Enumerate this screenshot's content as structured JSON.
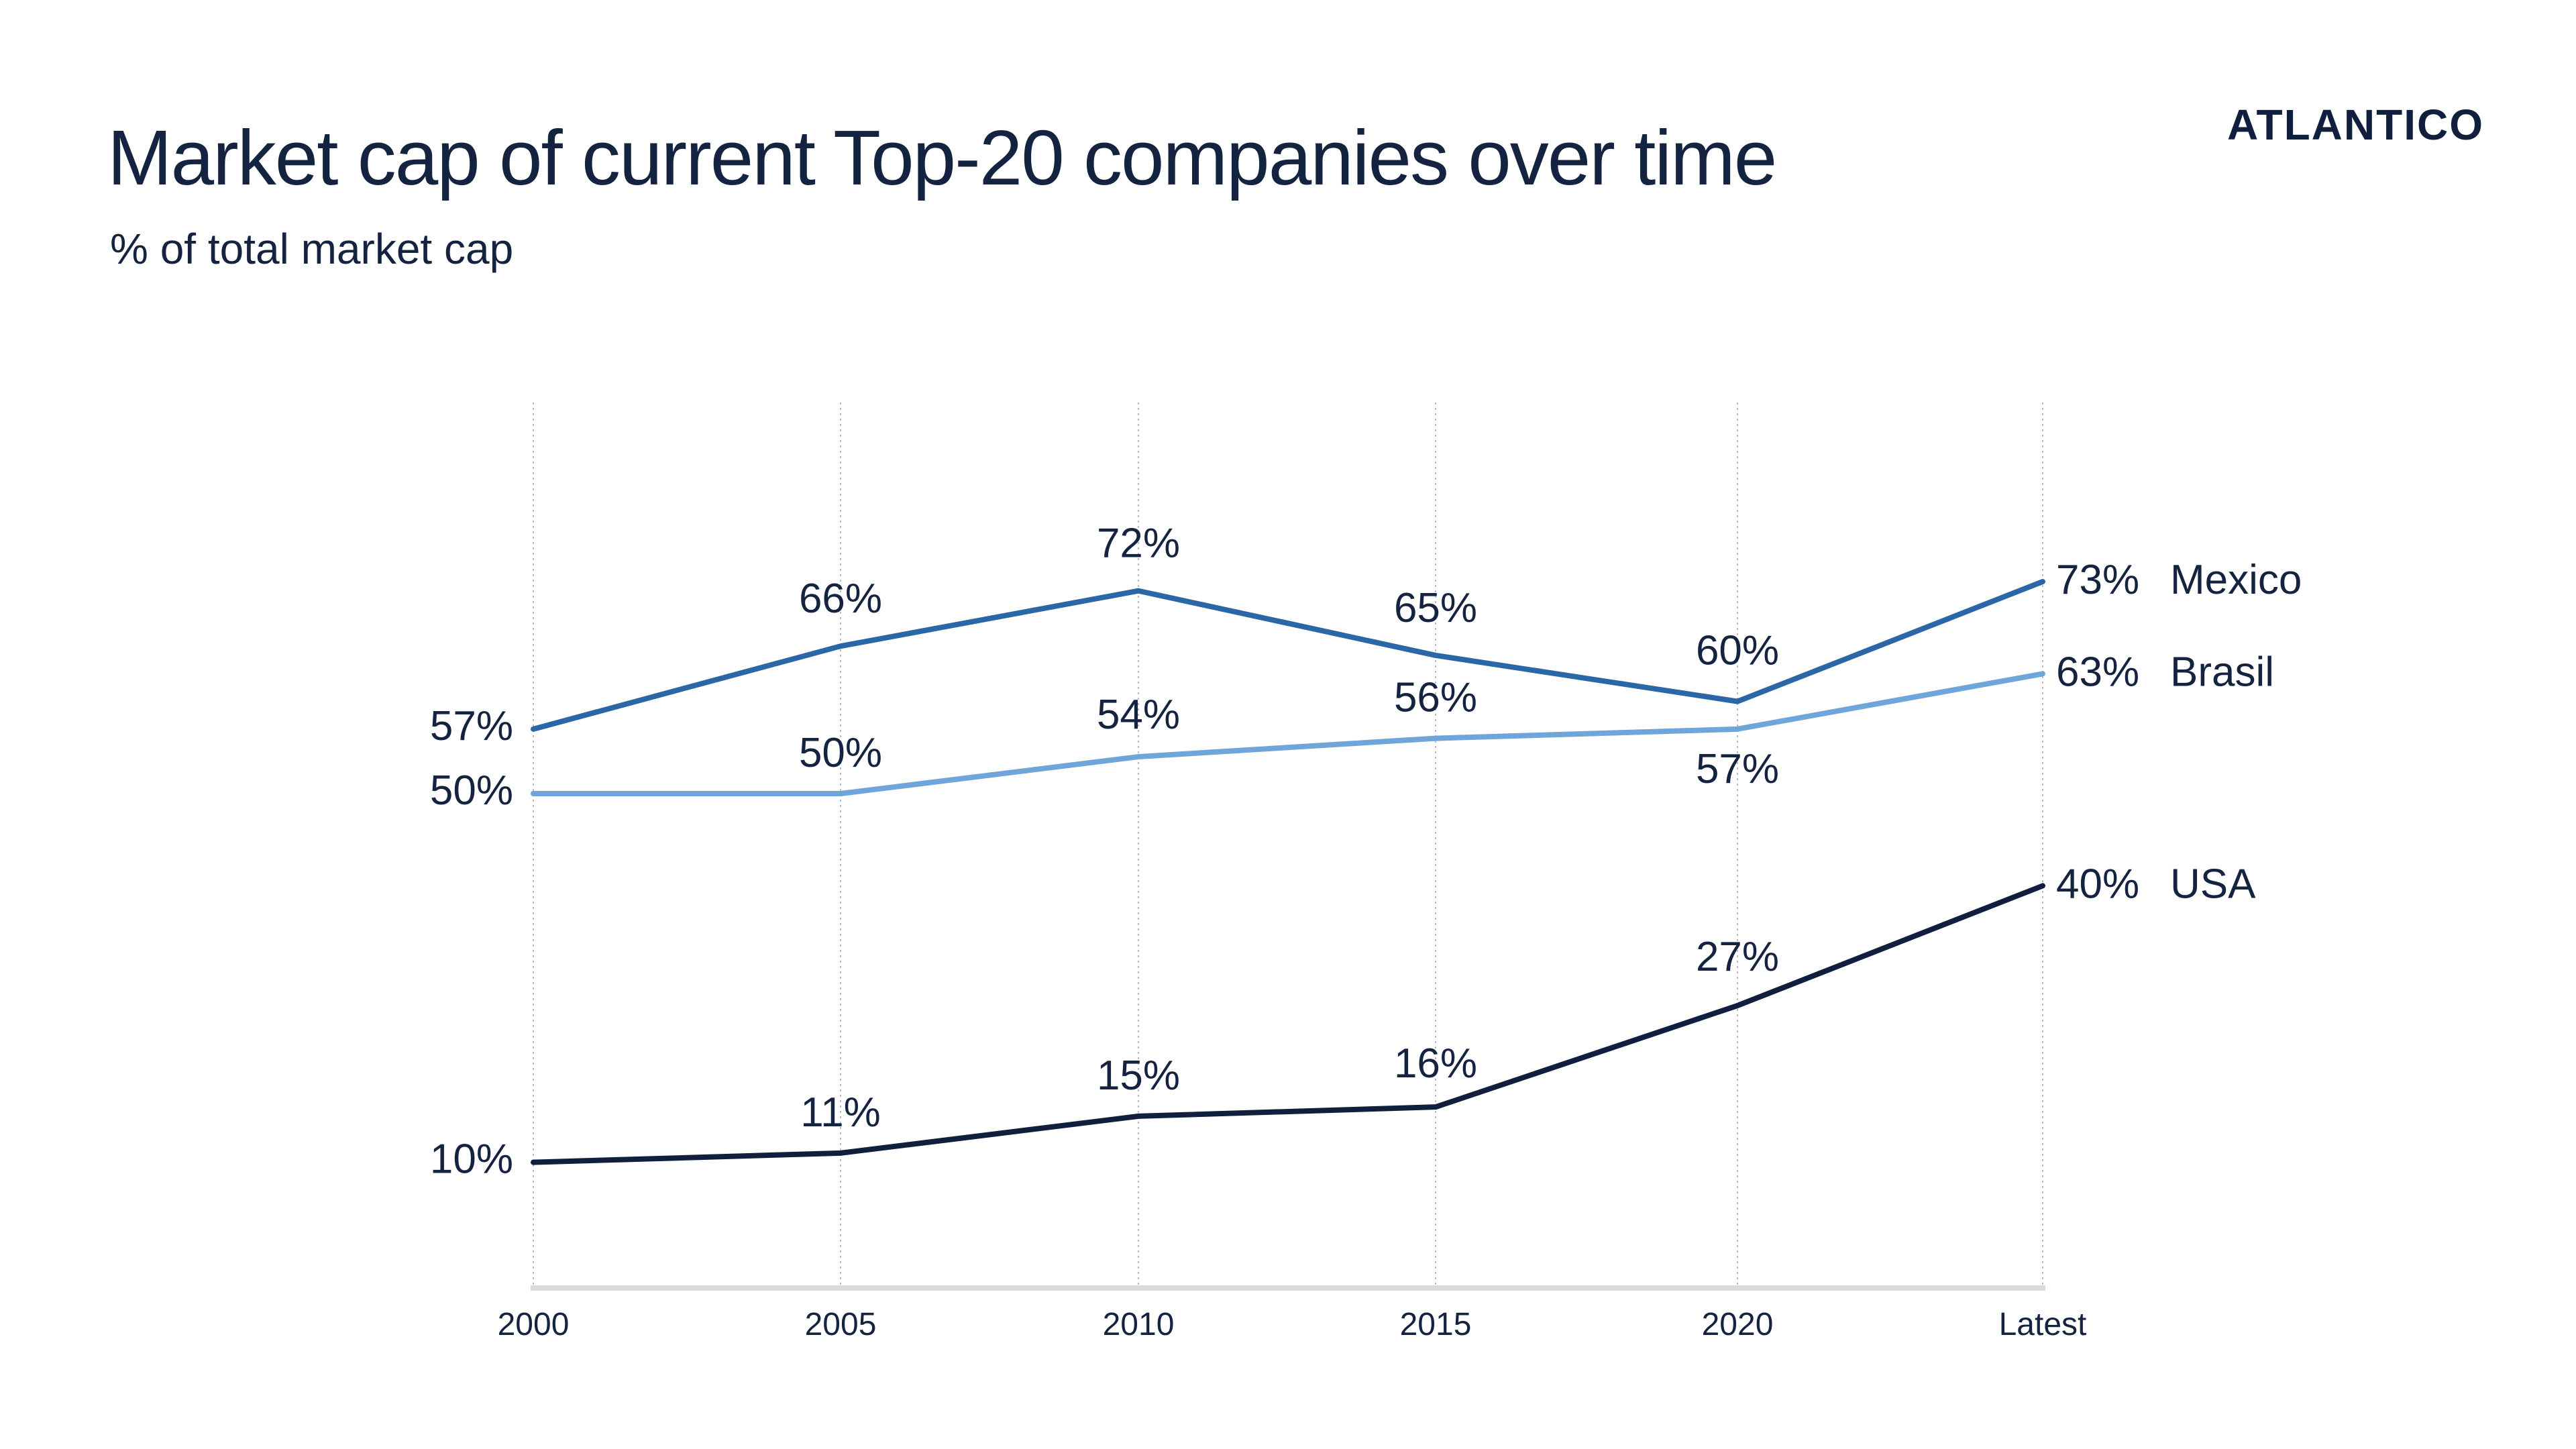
{
  "header": {
    "title": "Market cap of current Top-20 companies over time",
    "subtitle": "% of total market cap",
    "logo_text": "ATLANTICO"
  },
  "chart_data": {
    "type": "line",
    "title": "Market cap of current Top-20 companies over time",
    "subtitle": "% of total market cap",
    "xlabel": "",
    "ylabel": "",
    "categories": [
      "2000",
      "2005",
      "2010",
      "2015",
      "2020",
      "Latest"
    ],
    "ylim": [
      0,
      80
    ],
    "grid": "vertical dotted",
    "legend": "direct labels at line ends (right)",
    "series": [
      {
        "name": "Mexico",
        "values": [
          57,
          66,
          72,
          65,
          60,
          73
        ],
        "labels": [
          "57%",
          "66%",
          "72%",
          "65%",
          "60%",
          "73%"
        ],
        "color": "#2b67a6"
      },
      {
        "name": "Brasil",
        "values": [
          50,
          50,
          54,
          56,
          57,
          63
        ],
        "labels": [
          "50%",
          "50%",
          "54%",
          "56%",
          "57%",
          "63%"
        ],
        "color": "#6fa5d9"
      },
      {
        "name": "USA",
        "values": [
          10,
          11,
          15,
          16,
          27,
          40
        ],
        "labels": [
          "10%",
          "11%",
          "15%",
          "16%",
          "27%",
          "40%"
        ],
        "color": "#0f1f3d"
      }
    ]
  }
}
